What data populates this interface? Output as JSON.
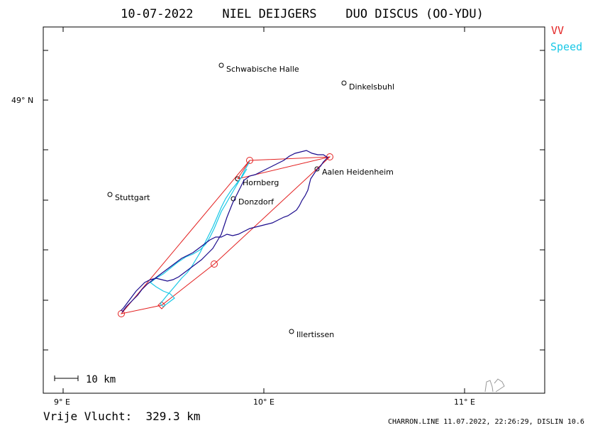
{
  "title": "10-07-2022    NIEL DEIJGERS    DUO DISCUS (OO-YDU)",
  "legend": [
    {
      "label": "VV",
      "color": "#e32020"
    },
    {
      "label": "Speed",
      "color": "#19c8e6"
    }
  ],
  "axes": {
    "lat_label": "49° N",
    "lon_labels": [
      "9° E",
      "10° E",
      "11° E"
    ]
  },
  "places": [
    {
      "name": "Schwabische Halle"
    },
    {
      "name": "Dinkelsbuhl"
    },
    {
      "name": "Stuttgart"
    },
    {
      "name": "Aalen Heidenheim"
    },
    {
      "name": "Hornberg"
    },
    {
      "name": "Donzdorf"
    },
    {
      "name": "Illertissen"
    }
  ],
  "scale_label": "10 km",
  "distance_text": "Vrije Vlucht:  329.3 km",
  "footer": "CHARRON.LINE 11.07.2022, 22:26:29, DISLIN 10.6",
  "colors": {
    "track": "#1a0a8c",
    "task": "#e32020",
    "speed": "#19c8e6"
  }
}
